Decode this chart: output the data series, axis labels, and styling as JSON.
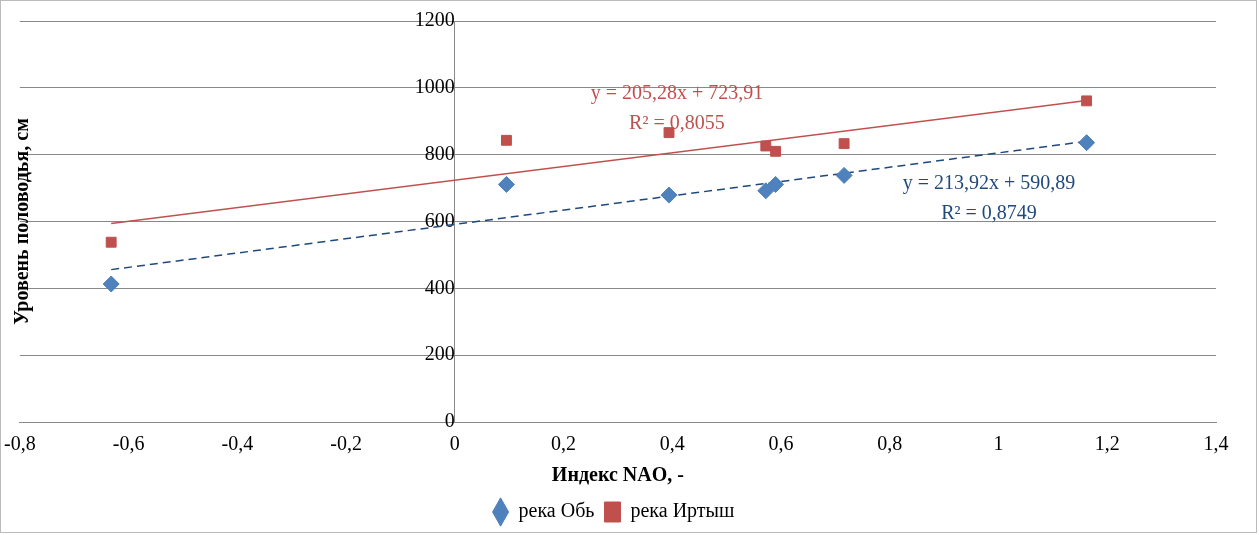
{
  "chart_data": {
    "type": "scatter",
    "xlabel": "Индекс NAO, -",
    "ylabel": "Уровень половодья, см",
    "xlim": [
      -0.8,
      1.4
    ],
    "xticks": [
      {
        "value": -0.8,
        "label": "-0,8"
      },
      {
        "value": -0.6,
        "label": "-0,6"
      },
      {
        "value": -0.4,
        "label": "-0,4"
      },
      {
        "value": -0.2,
        "label": "-0,2"
      },
      0,
      {
        "value": 0.2,
        "label": "0,2"
      },
      {
        "value": 0.4,
        "label": "0,4"
      },
      {
        "value": 0.6,
        "label": "0,6"
      },
      {
        "value": 0.8,
        "label": "0,8"
      },
      1,
      {
        "value": 1.2,
        "label": "1,2"
      },
      {
        "value": 1.4,
        "label": "1,4"
      }
    ],
    "ylim": [
      0,
      1200
    ],
    "yticks": [
      0,
      200,
      400,
      600,
      800,
      1000,
      1200
    ],
    "grid": "y",
    "legend": "bottom",
    "series": [
      {
        "name": "река Обь",
        "marker": "diamond",
        "color": "#4f81bd",
        "x": [
          -0.632,
          0.095,
          0.394,
          0.572,
          0.59,
          0.716,
          1.162
        ],
        "values": [
          413,
          711,
          679,
          692,
          711,
          738,
          836
        ]
      },
      {
        "name": "река Иртыш",
        "marker": "square",
        "color": "#c0504d",
        "x": [
          -0.632,
          0.095,
          0.394,
          0.572,
          0.59,
          0.716,
          1.162
        ],
        "values": [
          538,
          843,
          866,
          826,
          810,
          833,
          961
        ]
      },
      {
        "type": "line",
        "marker": "none",
        "line_style": "solid",
        "color": "#c0504d",
        "x": [
          -0.632,
          1.162
        ],
        "values": [
          594,
          962
        ]
      },
      {
        "type": "line",
        "marker": "none",
        "line_style": "dashed",
        "color": "#1f497d",
        "x": [
          -0.632,
          1.162
        ],
        "values": [
          456,
          840
        ]
      }
    ],
    "annotations": [
      "y = 205,28x + 723,91",
      "R² = 0,8055",
      "y = 213,92x + 590,89",
      "R² = 0,8749"
    ]
  }
}
